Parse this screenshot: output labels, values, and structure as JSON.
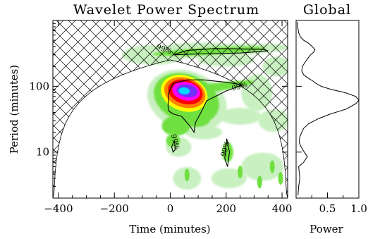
{
  "chart_data": [
    {
      "type": "heatmap",
      "title": "Wavelet Power Spectrum",
      "xlabel": "Time (minutes)",
      "ylabel": "Period (minutes)",
      "xlim": [
        -420,
        420
      ],
      "ylim": [
        2,
        1000
      ],
      "y_scale": "log",
      "x_ticks": [
        -400,
        -200,
        0,
        200,
        400
      ],
      "x_tick_labels": [
        "−400",
        "−200",
        "0",
        "200",
        "400"
      ],
      "y_ticks": [
        10,
        100
      ],
      "y_tick_labels": [
        "10",
        "100"
      ],
      "contour_label": "99%",
      "peak": {
        "time": 50,
        "period": 85
      },
      "cone_of_influence": "hatched",
      "colormap": [
        "#c8f0c0",
        "#70e040",
        "#ffff00",
        "#ff8000",
        "#ff0000",
        "#ff00ff",
        "#7030ff",
        "#00d8ff"
      ],
      "hatch_color": "#000000"
    },
    {
      "type": "line",
      "title": "Global",
      "xlabel": "Power",
      "xlim": [
        0,
        1.0
      ],
      "x_ticks": [
        0.5,
        1.0
      ],
      "x_tick_labels": [
        "0.5",
        "1.0"
      ],
      "series": [
        {
          "x": [
            0.03,
            0.04,
            0.06,
            0.05,
            0.04,
            0.12,
            0.18,
            0.13,
            0.08,
            0.05,
            0.06,
            0.09,
            0.12,
            0.2,
            0.35,
            0.55,
            0.8,
            0.96,
            1.0,
            0.95,
            0.78,
            0.55,
            0.4,
            0.32,
            0.27,
            0.18,
            0.12,
            0.09,
            0.1,
            0.14,
            0.18,
            0.23,
            0.28,
            0.3,
            0.26,
            0.2,
            0.12,
            0.07,
            0.04,
            0.03,
            0.02,
            0.02
          ],
          "period": [
            2.2,
            3,
            4,
            5,
            6,
            7,
            8.5,
            10,
            12,
            14,
            17,
            20,
            23,
            27,
            32,
            38,
            45,
            55,
            62,
            70,
            80,
            90,
            100,
            110,
            120,
            135,
            150,
            170,
            200,
            230,
            260,
            300,
            330,
            360,
            400,
            450,
            500,
            560,
            650,
            750,
            850,
            950
          ]
        }
      ]
    }
  ]
}
